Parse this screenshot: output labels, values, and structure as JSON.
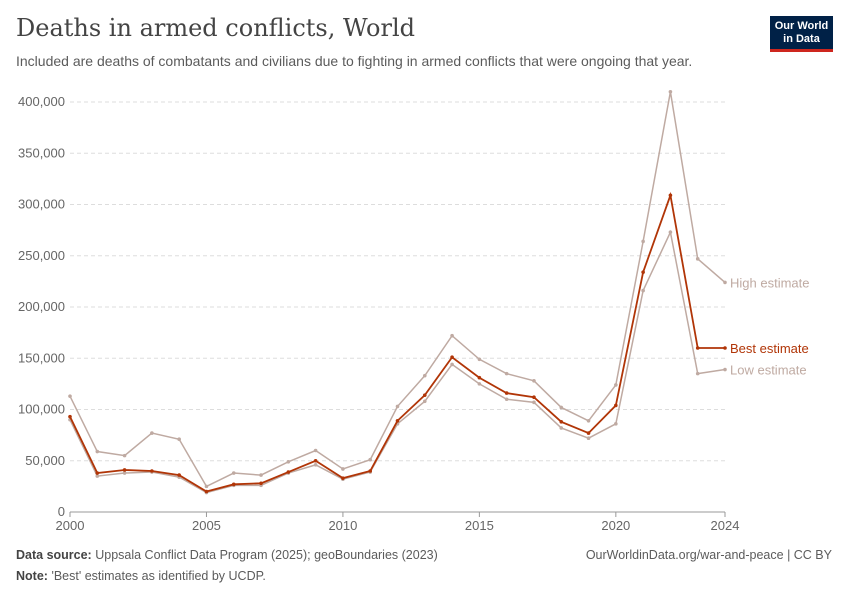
{
  "header": {
    "title": "Deaths in armed conflicts, World",
    "subtitle": "Included are deaths of combatants and civilians due to fighting in armed conflicts that were ongoing that year.",
    "logo_line1": "Our World",
    "logo_line2": "in Data"
  },
  "footer": {
    "source_label": "Data source:",
    "source_text": "Uppsala Conflict Data Program (2025); geoBoundaries (2023)",
    "url": "OurWorldinData.org/war-and-peace | CC BY",
    "note_label": "Note:",
    "note_text": "'Best' estimates as identified by UCDP."
  },
  "chart_data": {
    "type": "line",
    "title": "Deaths in armed conflicts, World",
    "x": [
      2000,
      2001,
      2002,
      2003,
      2004,
      2005,
      2006,
      2007,
      2008,
      2009,
      2010,
      2011,
      2012,
      2013,
      2014,
      2015,
      2016,
      2017,
      2018,
      2019,
      2020,
      2021,
      2022,
      2023,
      2024
    ],
    "xticks": [
      "2000",
      "2005",
      "2010",
      "2015",
      "2020",
      "2024"
    ],
    "yticks": [
      "0",
      "50,000",
      "100,000",
      "150,000",
      "200,000",
      "250,000",
      "300,000",
      "350,000",
      "400,000"
    ],
    "ylim": [
      0,
      400000
    ],
    "xlim": [
      2000,
      2024
    ],
    "grid": "horizontal dashed",
    "legend": "inline-right",
    "series": [
      {
        "name": "High estimate",
        "color": "#bfaaa2",
        "values": [
          113000,
          59000,
          55000,
          77000,
          71000,
          25000,
          38000,
          36000,
          49000,
          60000,
          42000,
          51000,
          103000,
          133000,
          172000,
          149000,
          135000,
          128000,
          102000,
          89000,
          124000,
          264000,
          410000,
          247000,
          224000
        ]
      },
      {
        "name": "Low estimate",
        "color": "#bfaaa2",
        "values": [
          90000,
          35000,
          38000,
          39000,
          34000,
          19000,
          26000,
          26000,
          38000,
          46000,
          32000,
          39000,
          86000,
          108000,
          144000,
          125000,
          110000,
          107000,
          82000,
          72000,
          86000,
          216000,
          273000,
          135000,
          139000
        ]
      },
      {
        "name": "Best estimate",
        "color": "#b13507",
        "values": [
          93000,
          38000,
          41000,
          40000,
          36000,
          20000,
          27000,
          28000,
          39000,
          50000,
          33000,
          40000,
          89000,
          114000,
          151000,
          131000,
          116000,
          112000,
          88000,
          77000,
          104000,
          234000,
          309000,
          160000,
          160000
        ]
      }
    ]
  }
}
